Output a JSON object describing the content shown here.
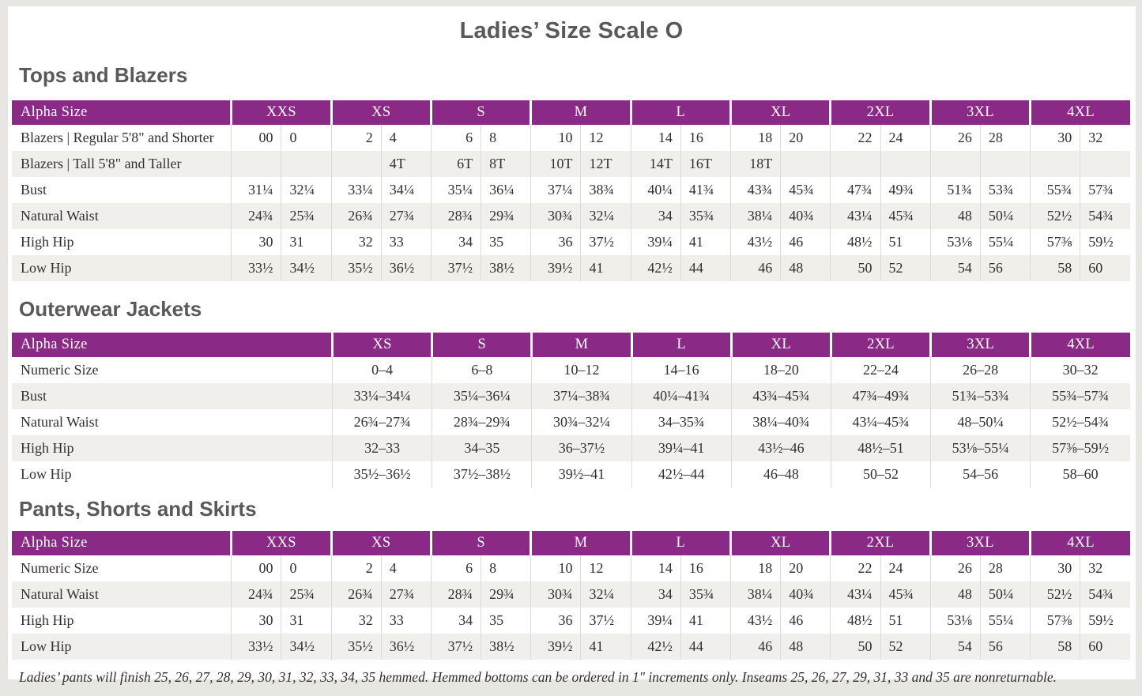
{
  "page": {
    "title": "Ladies’ Size Scale O",
    "footnote": "Ladies’ pants will finish 25, 26, 27, 28, 29, 30, 31, 32, 33, 34, 35 hemmed. Hemmed bottoms can be ordered in 1″ increments only. Inseams 25, 26, 27, 29, 31, 33 and 35 are nonreturnable."
  },
  "colors": {
    "header_purple": "#8B2A86",
    "row_stripe": "#F1EFEC",
    "page_margin": "#E8E6E3",
    "heading_gray": "#595959"
  },
  "sections": [
    {
      "heading": "Tops and Blazers",
      "table": {
        "type": "paired",
        "header_label": "Alpha Size",
        "sizes": [
          "XXS",
          "XS",
          "S",
          "M",
          "L",
          "XL",
          "2XL",
          "3XL",
          "4XL"
        ],
        "rows": [
          {
            "label": "Blazers  |  Regular 5'8\" and Shorter",
            "values": [
              [
                "00",
                "0"
              ],
              [
                "2",
                "4"
              ],
              [
                "6",
                "8"
              ],
              [
                "10",
                "12"
              ],
              [
                "14",
                "16"
              ],
              [
                "18",
                "20"
              ],
              [
                "22",
                "24"
              ],
              [
                "26",
                "28"
              ],
              [
                "30",
                "32"
              ]
            ]
          },
          {
            "label": "Blazers  |  Tall 5'8\" and Taller",
            "values": [
              [
                "",
                ""
              ],
              [
                "",
                "4T"
              ],
              [
                "6T",
                "8T"
              ],
              [
                "10T",
                "12T"
              ],
              [
                "14T",
                "16T"
              ],
              [
                "18T",
                ""
              ],
              [
                "",
                ""
              ],
              [
                "",
                ""
              ],
              [
                "",
                ""
              ]
            ]
          },
          {
            "label": "Bust",
            "values": [
              [
                "31¼",
                "32¼"
              ],
              [
                "33¼",
                "34¼"
              ],
              [
                "35¼",
                "36¼"
              ],
              [
                "37¼",
                "38¾"
              ],
              [
                "40¼",
                "41¾"
              ],
              [
                "43¾",
                "45¾"
              ],
              [
                "47¾",
                "49¾"
              ],
              [
                "51¾",
                "53¾"
              ],
              [
                "55¾",
                "57¾"
              ]
            ]
          },
          {
            "label": "Natural Waist",
            "values": [
              [
                "24¾",
                "25¾"
              ],
              [
                "26¾",
                "27¾"
              ],
              [
                "28¾",
                "29¾"
              ],
              [
                "30¾",
                "32¼"
              ],
              [
                "34",
                "35¾"
              ],
              [
                "38¼",
                "40¾"
              ],
              [
                "43¼",
                "45¾"
              ],
              [
                "48",
                "50¼"
              ],
              [
                "52½",
                "54¾"
              ]
            ]
          },
          {
            "label": "High Hip",
            "values": [
              [
                "30",
                "31"
              ],
              [
                "32",
                "33"
              ],
              [
                "34",
                "35"
              ],
              [
                "36",
                "37½"
              ],
              [
                "39¼",
                "41"
              ],
              [
                "43½",
                "46"
              ],
              [
                "48½",
                "51"
              ],
              [
                "53⅛",
                "55¼"
              ],
              [
                "57⅜",
                "59½"
              ]
            ]
          },
          {
            "label": "Low Hip",
            "values": [
              [
                "33½",
                "34½"
              ],
              [
                "35½",
                "36½"
              ],
              [
                "37½",
                "38½"
              ],
              [
                "39½",
                "41"
              ],
              [
                "42½",
                "44"
              ],
              [
                "46",
                "48"
              ],
              [
                "50",
                "52"
              ],
              [
                "54",
                "56"
              ],
              [
                "58",
                "60"
              ]
            ]
          }
        ]
      }
    },
    {
      "heading": "Outerwear Jackets",
      "table": {
        "type": "single",
        "header_label": "Alpha Size",
        "sizes": [
          "XS",
          "S",
          "M",
          "L",
          "XL",
          "2XL",
          "3XL",
          "4XL"
        ],
        "rows": [
          {
            "label": "Numeric Size",
            "values": [
              "0–4",
              "6–8",
              "10–12",
              "14–16",
              "18–20",
              "22–24",
              "26–28",
              "30–32"
            ]
          },
          {
            "label": "Bust",
            "values": [
              "33¼–34¼",
              "35¼–36¼",
              "37¼–38¾",
              "40¼–41¾",
              "43¾–45¾",
              "47¾–49¾",
              "51¾–53¾",
              "55¾–57¾"
            ]
          },
          {
            "label": "Natural Waist",
            "values": [
              "26¾–27¾",
              "28¾–29¾",
              "30¾–32¼",
              "34–35¾",
              "38¼–40¾",
              "43¼–45¾",
              "48–50¼",
              "52½–54¾"
            ]
          },
          {
            "label": "High Hip",
            "values": [
              "32–33",
              "34–35",
              "36–37½",
              "39¼–41",
              "43½–46",
              "48½–51",
              "53⅛–55¼",
              "57⅜–59½"
            ]
          },
          {
            "label": "Low Hip",
            "values": [
              "35½–36½",
              "37½–38½",
              "39½–41",
              "42½–44",
              "46–48",
              "50–52",
              "54–56",
              "58–60"
            ]
          }
        ]
      }
    },
    {
      "heading": "Pants, Shorts and Skirts",
      "table": {
        "type": "paired",
        "header_label": "Alpha Size",
        "sizes": [
          "XXS",
          "XS",
          "S",
          "M",
          "L",
          "XL",
          "2XL",
          "3XL",
          "4XL"
        ],
        "rows": [
          {
            "label": "Numeric Size",
            "values": [
              [
                "00",
                "0"
              ],
              [
                "2",
                "4"
              ],
              [
                "6",
                "8"
              ],
              [
                "10",
                "12"
              ],
              [
                "14",
                "16"
              ],
              [
                "18",
                "20"
              ],
              [
                "22",
                "24"
              ],
              [
                "26",
                "28"
              ],
              [
                "30",
                "32"
              ]
            ]
          },
          {
            "label": "Natural Waist",
            "values": [
              [
                "24¾",
                "25¾"
              ],
              [
                "26¾",
                "27¾"
              ],
              [
                "28¾",
                "29¾"
              ],
              [
                "30¾",
                "32¼"
              ],
              [
                "34",
                "35¾"
              ],
              [
                "38¼",
                "40¾"
              ],
              [
                "43¼",
                "45¾"
              ],
              [
                "48",
                "50¼"
              ],
              [
                "52½",
                "54¾"
              ]
            ]
          },
          {
            "label": "High Hip",
            "values": [
              [
                "30",
                "31"
              ],
              [
                "32",
                "33"
              ],
              [
                "34",
                "35"
              ],
              [
                "36",
                "37½"
              ],
              [
                "39¼",
                "41"
              ],
              [
                "43½",
                "46"
              ],
              [
                "48½",
                "51"
              ],
              [
                "53⅛",
                "55¼"
              ],
              [
                "57⅜",
                "59½"
              ]
            ]
          },
          {
            "label": "Low Hip",
            "values": [
              [
                "33½",
                "34½"
              ],
              [
                "35½",
                "36½"
              ],
              [
                "37½",
                "38½"
              ],
              [
                "39½",
                "41"
              ],
              [
                "42½",
                "44"
              ],
              [
                "46",
                "48"
              ],
              [
                "50",
                "52"
              ],
              [
                "54",
                "56"
              ],
              [
                "58",
                "60"
              ]
            ]
          }
        ]
      }
    }
  ]
}
